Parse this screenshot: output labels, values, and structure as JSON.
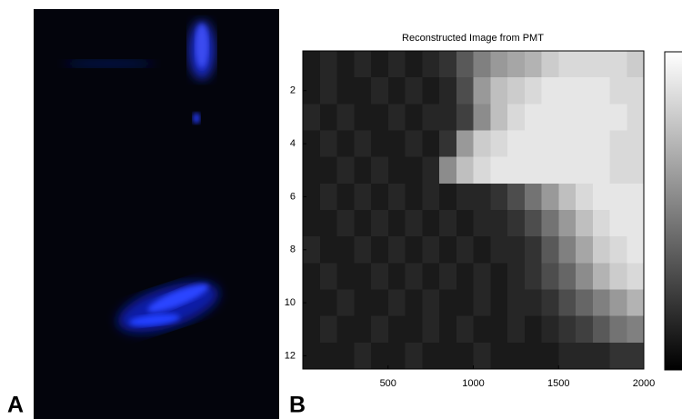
{
  "panel_labels": [
    "A",
    "B"
  ],
  "chart_data": {
    "type": "heatmap",
    "title": "Reconstructed Image from PMT",
    "colormap": "gray",
    "clim": [
      0,
      1
    ],
    "x_bins": [
      0,
      100,
      200,
      300,
      400,
      500,
      600,
      700,
      800,
      900,
      1000,
      1100,
      1200,
      1300,
      1400,
      1500,
      1600,
      1700,
      1800,
      1900,
      2000
    ],
    "y": [
      1,
      2,
      3,
      4,
      5,
      6,
      7,
      8,
      9,
      10,
      11,
      12
    ],
    "values": [
      [
        0.1,
        0.15,
        0.1,
        0.15,
        0.1,
        0.15,
        0.1,
        0.15,
        0.2,
        0.35,
        0.5,
        0.6,
        0.65,
        0.7,
        0.8,
        0.85,
        0.85,
        0.85,
        0.85,
        0.8
      ],
      [
        0.1,
        0.15,
        0.1,
        0.1,
        0.15,
        0.1,
        0.15,
        0.1,
        0.15,
        0.3,
        0.6,
        0.75,
        0.8,
        0.85,
        0.9,
        0.9,
        0.9,
        0.9,
        0.85,
        0.85
      ],
      [
        0.15,
        0.1,
        0.15,
        0.1,
        0.1,
        0.15,
        0.1,
        0.15,
        0.15,
        0.25,
        0.55,
        0.75,
        0.85,
        0.9,
        0.9,
        0.9,
        0.9,
        0.9,
        0.9,
        0.85
      ],
      [
        0.1,
        0.15,
        0.1,
        0.15,
        0.1,
        0.1,
        0.15,
        0.1,
        0.2,
        0.6,
        0.8,
        0.85,
        0.9,
        0.9,
        0.9,
        0.9,
        0.9,
        0.9,
        0.85,
        0.85
      ],
      [
        0.1,
        0.1,
        0.15,
        0.1,
        0.15,
        0.1,
        0.1,
        0.15,
        0.55,
        0.75,
        0.85,
        0.9,
        0.9,
        0.9,
        0.9,
        0.9,
        0.9,
        0.9,
        0.85,
        0.85
      ],
      [
        0.1,
        0.15,
        0.1,
        0.15,
        0.1,
        0.15,
        0.1,
        0.15,
        0.1,
        0.15,
        0.15,
        0.2,
        0.3,
        0.45,
        0.6,
        0.75,
        0.85,
        0.9,
        0.9,
        0.9
      ],
      [
        0.1,
        0.1,
        0.15,
        0.1,
        0.15,
        0.1,
        0.15,
        0.1,
        0.15,
        0.1,
        0.15,
        0.15,
        0.2,
        0.3,
        0.45,
        0.6,
        0.75,
        0.85,
        0.9,
        0.9
      ],
      [
        0.15,
        0.1,
        0.1,
        0.15,
        0.1,
        0.15,
        0.1,
        0.15,
        0.1,
        0.15,
        0.1,
        0.15,
        0.15,
        0.2,
        0.35,
        0.5,
        0.65,
        0.8,
        0.85,
        0.9
      ],
      [
        0.1,
        0.15,
        0.1,
        0.1,
        0.15,
        0.1,
        0.15,
        0.1,
        0.15,
        0.1,
        0.15,
        0.1,
        0.15,
        0.2,
        0.3,
        0.4,
        0.55,
        0.7,
        0.8,
        0.85
      ],
      [
        0.1,
        0.1,
        0.15,
        0.1,
        0.1,
        0.15,
        0.1,
        0.15,
        0.1,
        0.1,
        0.15,
        0.1,
        0.15,
        0.15,
        0.2,
        0.3,
        0.4,
        0.5,
        0.6,
        0.7
      ],
      [
        0.1,
        0.15,
        0.1,
        0.1,
        0.15,
        0.1,
        0.1,
        0.15,
        0.1,
        0.15,
        0.1,
        0.1,
        0.15,
        0.1,
        0.15,
        0.2,
        0.25,
        0.35,
        0.45,
        0.5
      ],
      [
        0.1,
        0.1,
        0.1,
        0.15,
        0.1,
        0.1,
        0.15,
        0.1,
        0.1,
        0.1,
        0.15,
        0.1,
        0.1,
        0.1,
        0.1,
        0.15,
        0.15,
        0.15,
        0.2,
        0.2
      ]
    ],
    "xlim": [
      0,
      2000
    ],
    "xticks": [
      500,
      1000,
      1500,
      2000
    ],
    "ylim": [
      12.5,
      0.5
    ],
    "yticks": [
      2,
      4,
      6,
      8,
      10,
      12
    ]
  }
}
